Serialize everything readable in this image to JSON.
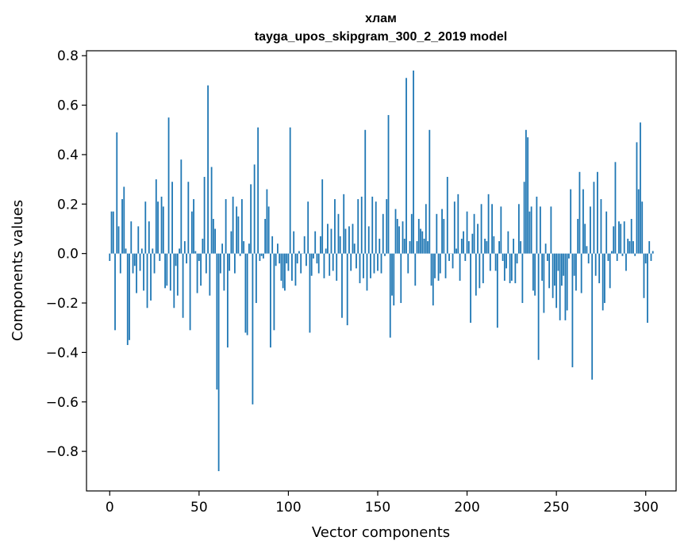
{
  "chart_data": {
    "type": "bar",
    "title_line1": "хлам",
    "title_line2": "tayga_upos_skipgram_300_2_2019 model",
    "xlabel": "Vector components",
    "ylabel": "Components values",
    "xlim": [
      -13,
      317
    ],
    "ylim": [
      -0.96,
      0.82
    ],
    "xticks": [
      0,
      50,
      100,
      150,
      200,
      250,
      300
    ],
    "yticks": [
      -0.8,
      -0.6,
      -0.4,
      -0.2,
      0.0,
      0.2,
      0.4,
      0.6,
      0.8
    ],
    "xtick_labels": [
      "0",
      "50",
      "100",
      "150",
      "200",
      "250",
      "300"
    ],
    "ytick_labels": [
      "−0.8",
      "−0.6",
      "−0.4",
      "−0.2",
      "0.0",
      "0.2",
      "0.4",
      "0.6",
      "0.8"
    ],
    "bar_color": "#1f77b4",
    "x_start": 0,
    "values": [
      -0.03,
      0.17,
      0.17,
      -0.31,
      0.49,
      0.11,
      -0.08,
      0.22,
      0.27,
      0.02,
      -0.37,
      -0.35,
      0.13,
      -0.08,
      -0.05,
      -0.16,
      0.11,
      -0.07,
      0.02,
      -0.15,
      0.21,
      -0.22,
      0.13,
      -0.19,
      0.02,
      -0.08,
      0.3,
      0.21,
      -0.03,
      0.23,
      0.19,
      -0.14,
      -0.13,
      0.55,
      -0.15,
      0.29,
      -0.22,
      -0.05,
      -0.17,
      0.02,
      0.38,
      -0.26,
      0.05,
      -0.04,
      0.29,
      -0.31,
      0.17,
      0.22,
      0.01,
      -0.16,
      -0.03,
      -0.13,
      0.06,
      0.31,
      -0.08,
      0.68,
      -0.17,
      0.35,
      0.14,
      0.1,
      -0.55,
      -0.88,
      -0.08,
      0.04,
      -0.15,
      0.22,
      -0.38,
      -0.07,
      0.09,
      0.23,
      -0.08,
      0.19,
      0.15,
      -0.01,
      0.22,
      0.05,
      -0.32,
      -0.33,
      0.04,
      0.28,
      -0.61,
      0.36,
      -0.2,
      0.51,
      -0.03,
      -0.01,
      -0.02,
      0.14,
      0.26,
      0.19,
      -0.38,
      0.07,
      -0.31,
      -0.05,
      0.04,
      -0.04,
      -0.11,
      -0.14,
      -0.15,
      -0.04,
      -0.07,
      0.51,
      -0.11,
      0.09,
      -0.13,
      -0.04,
      0.01,
      -0.08,
      0.0,
      0.07,
      -0.05,
      0.21,
      -0.32,
      -0.09,
      -0.02,
      0.09,
      -0.04,
      -0.08,
      0.07,
      0.3,
      -0.1,
      0.02,
      0.12,
      -0.09,
      0.1,
      -0.07,
      0.22,
      -0.11,
      0.16,
      0.07,
      -0.26,
      0.24,
      0.1,
      -0.29,
      0.11,
      -0.07,
      0.12,
      0.04,
      -0.06,
      0.22,
      -0.12,
      0.23,
      -0.1,
      0.5,
      -0.15,
      0.11,
      -0.1,
      0.23,
      -0.08,
      0.21,
      -0.07,
      0.06,
      -0.08,
      0.16,
      -0.01,
      0.22,
      0.56,
      -0.34,
      -0.17,
      -0.21,
      0.18,
      0.14,
      0.11,
      -0.2,
      0.13,
      0.06,
      0.71,
      -0.08,
      0.05,
      0.16,
      0.74,
      -0.13,
      0.05,
      0.14,
      0.1,
      0.09,
      0.06,
      0.2,
      0.05,
      0.5,
      -0.13,
      -0.21,
      -0.1,
      0.16,
      -0.11,
      -0.08,
      0.18,
      0.14,
      -0.1,
      0.31,
      -0.03,
      0.0,
      -0.06,
      0.21,
      0.02,
      0.24,
      -0.11,
      0.06,
      0.09,
      -0.03,
      0.17,
      0.05,
      -0.28,
      0.08,
      0.16,
      -0.17,
      0.12,
      -0.14,
      0.2,
      -0.12,
      0.06,
      0.05,
      0.24,
      -0.07,
      0.2,
      0.07,
      -0.07,
      -0.3,
      0.05,
      0.19,
      -0.03,
      -0.11,
      -0.06,
      0.09,
      -0.12,
      -0.11,
      0.06,
      -0.12,
      -0.04,
      0.2,
      0.05,
      -0.2,
      0.29,
      0.5,
      0.47,
      0.17,
      0.19,
      -0.15,
      -0.17,
      0.23,
      -0.43,
      0.19,
      -0.11,
      -0.24,
      0.04,
      -0.03,
      -0.14,
      0.19,
      -0.18,
      -0.13,
      -0.22,
      -0.07,
      -0.27,
      -0.13,
      -0.09,
      -0.27,
      -0.23,
      -0.02,
      0.26,
      -0.46,
      -0.09,
      -0.15,
      0.14,
      0.33,
      -0.16,
      0.26,
      0.12,
      0.03,
      -0.04,
      0.19,
      -0.51,
      0.29,
      -0.09,
      0.33,
      -0.12,
      0.22,
      -0.23,
      -0.2,
      0.17,
      -0.03,
      -0.14,
      0.01,
      0.11,
      0.37,
      -0.03,
      0.13,
      0.12,
      -0.01,
      0.13,
      -0.07,
      0.06,
      0.05,
      0.14,
      0.05,
      -0.01,
      0.45,
      0.26,
      0.53,
      0.21,
      -0.18,
      -0.04,
      -0.28,
      0.05,
      -0.03,
      0.01
    ]
  }
}
